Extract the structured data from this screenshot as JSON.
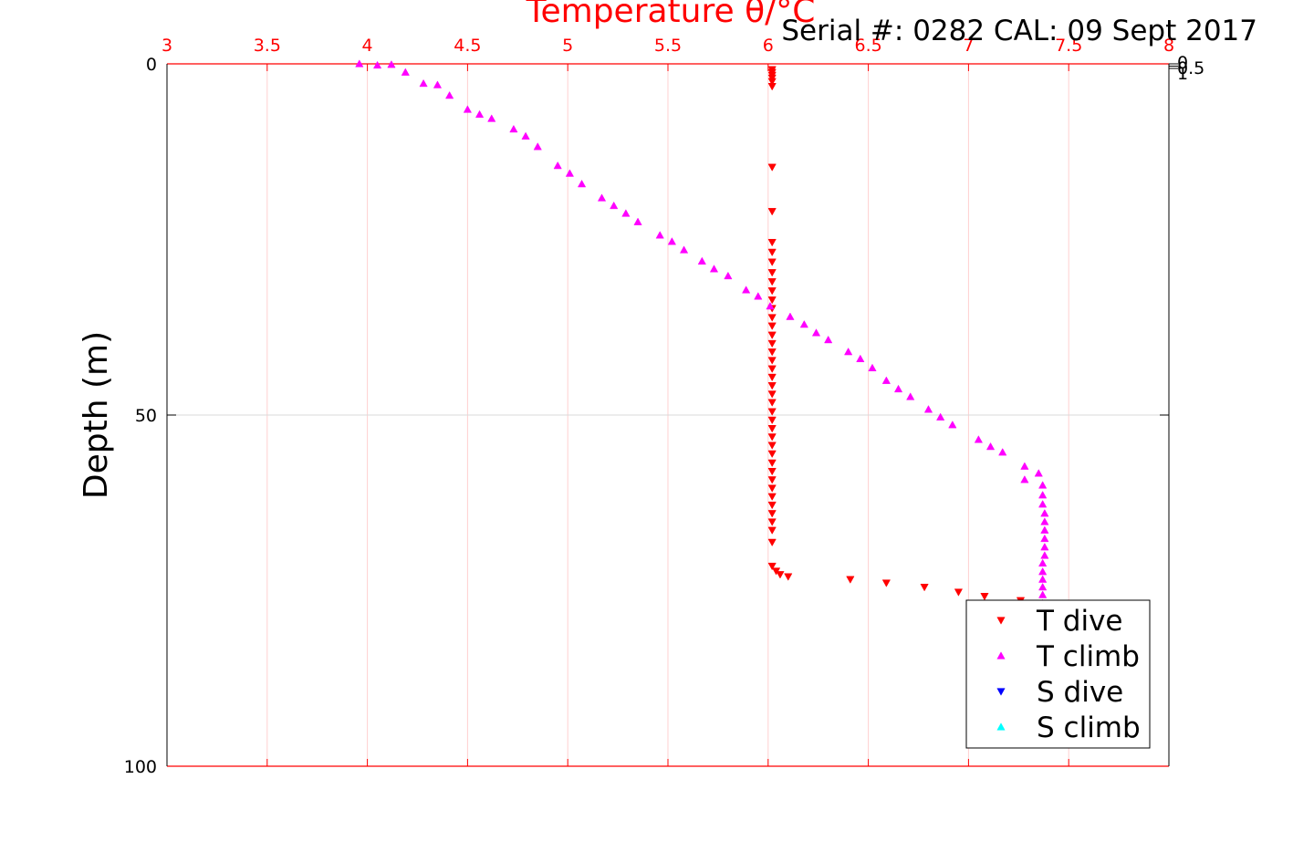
{
  "header": {
    "serial_text": "Serial #: 0282  CAL: 09 Sept 2017"
  },
  "colors": {
    "t_dive": "#ff0000",
    "t_climb": "#ff00ff",
    "s_dive": "#0000ff",
    "s_climb": "#00ffff",
    "top_axis": "#ff0000",
    "grid_vertical": "#ffd0d0",
    "grid_horizontal": "#d9d9d9"
  },
  "chart_data": {
    "type": "scatter",
    "title": "Temperature θ/°C",
    "xlabel": "Temperature θ/°C",
    "ylabel": "Depth (m)",
    "xlim": [
      3,
      8
    ],
    "ylim": [
      0,
      100
    ],
    "y_reversed": true,
    "grid": true,
    "legend_position": "bottom-right",
    "x_ticks": [
      "3",
      "3.5",
      "4",
      "4.5",
      "5",
      "5.5",
      "6",
      "6.5",
      "7",
      "7.5",
      "8"
    ],
    "y_ticks": [
      "0",
      "50",
      "100"
    ],
    "right_ticks": [
      "0",
      "0.5",
      "1"
    ],
    "series": [
      {
        "name": "T dive",
        "marker": "triangle-down",
        "points": [
          [
            6.02,
            0.8
          ],
          [
            6.02,
            1.2
          ],
          [
            6.02,
            1.6
          ],
          [
            6.02,
            2.0
          ],
          [
            6.02,
            2.5
          ],
          [
            6.02,
            3.2
          ],
          [
            6.02,
            14.7
          ],
          [
            6.02,
            21.0
          ],
          [
            6.02,
            25.4
          ],
          [
            6.02,
            26.8
          ],
          [
            6.02,
            28.2
          ],
          [
            6.02,
            29.7
          ],
          [
            6.02,
            31.0
          ],
          [
            6.02,
            32.3
          ],
          [
            6.02,
            33.6
          ],
          [
            6.02,
            34.8
          ],
          [
            6.02,
            36.1
          ],
          [
            6.02,
            37.3
          ],
          [
            6.02,
            38.6
          ],
          [
            6.02,
            39.8
          ],
          [
            6.02,
            41.0
          ],
          [
            6.02,
            42.2
          ],
          [
            6.02,
            43.4
          ],
          [
            6.02,
            44.6
          ],
          [
            6.02,
            45.8
          ],
          [
            6.02,
            47.0
          ],
          [
            6.02,
            48.2
          ],
          [
            6.02,
            49.5
          ],
          [
            6.02,
            50.7
          ],
          [
            6.02,
            51.9
          ],
          [
            6.02,
            53.1
          ],
          [
            6.02,
            54.3
          ],
          [
            6.02,
            55.5
          ],
          [
            6.02,
            56.8
          ],
          [
            6.02,
            58.0
          ],
          [
            6.02,
            59.2
          ],
          [
            6.02,
            60.4
          ],
          [
            6.02,
            61.6
          ],
          [
            6.02,
            62.8
          ],
          [
            6.02,
            64.0
          ],
          [
            6.02,
            65.2
          ],
          [
            6.02,
            66.4
          ],
          [
            6.02,
            68.1
          ],
          [
            6.02,
            71.5
          ],
          [
            6.04,
            72.2
          ],
          [
            6.06,
            72.7
          ],
          [
            6.1,
            73.0
          ],
          [
            6.41,
            73.4
          ],
          [
            6.59,
            73.9
          ],
          [
            6.78,
            74.5
          ],
          [
            6.95,
            75.2
          ],
          [
            7.08,
            75.8
          ],
          [
            7.26,
            76.4
          ],
          [
            7.33,
            76.8
          ]
        ]
      },
      {
        "name": "T climb",
        "marker": "triangle-up",
        "points": [
          [
            3.96,
            0.0
          ],
          [
            4.05,
            0.2
          ],
          [
            4.12,
            0.1
          ],
          [
            4.19,
            1.2
          ],
          [
            4.28,
            2.8
          ],
          [
            4.35,
            3.0
          ],
          [
            4.41,
            4.5
          ],
          [
            4.5,
            6.5
          ],
          [
            4.56,
            7.2
          ],
          [
            4.62,
            7.8
          ],
          [
            4.73,
            9.3
          ],
          [
            4.79,
            10.3
          ],
          [
            4.85,
            11.8
          ],
          [
            4.95,
            14.5
          ],
          [
            5.01,
            15.6
          ],
          [
            5.07,
            17.1
          ],
          [
            5.17,
            19.1
          ],
          [
            5.23,
            20.2
          ],
          [
            5.29,
            21.3
          ],
          [
            5.35,
            22.5
          ],
          [
            5.46,
            24.4
          ],
          [
            5.52,
            25.3
          ],
          [
            5.58,
            26.5
          ],
          [
            5.67,
            28.1
          ],
          [
            5.73,
            29.2
          ],
          [
            5.8,
            30.2
          ],
          [
            5.89,
            32.2
          ],
          [
            5.95,
            33.1
          ],
          [
            6.01,
            34.5
          ],
          [
            6.11,
            36.0
          ],
          [
            6.18,
            37.1
          ],
          [
            6.24,
            38.3
          ],
          [
            6.3,
            39.3
          ],
          [
            6.4,
            41.0
          ],
          [
            6.46,
            42.0
          ],
          [
            6.52,
            43.3
          ],
          [
            6.59,
            45.1
          ],
          [
            6.65,
            46.3
          ],
          [
            6.71,
            47.4
          ],
          [
            6.8,
            49.2
          ],
          [
            6.86,
            50.3
          ],
          [
            6.92,
            51.4
          ],
          [
            7.05,
            53.5
          ],
          [
            7.11,
            54.5
          ],
          [
            7.17,
            55.3
          ],
          [
            7.28,
            57.3
          ],
          [
            7.35,
            58.3
          ],
          [
            7.28,
            59.2
          ],
          [
            7.37,
            60.0
          ],
          [
            7.37,
            61.4
          ],
          [
            7.37,
            62.7
          ],
          [
            7.38,
            64.0
          ],
          [
            7.38,
            65.2
          ],
          [
            7.38,
            66.4
          ],
          [
            7.38,
            67.6
          ],
          [
            7.38,
            68.8
          ],
          [
            7.38,
            70.0
          ],
          [
            7.37,
            71.1
          ],
          [
            7.37,
            72.3
          ],
          [
            7.37,
            73.4
          ],
          [
            7.37,
            74.5
          ],
          [
            7.37,
            75.6
          ],
          [
            7.37,
            76.8
          ],
          [
            7.37,
            77.5
          ]
        ]
      },
      {
        "name": "S dive",
        "marker": "triangle-down",
        "points": []
      },
      {
        "name": "S climb",
        "marker": "triangle-up",
        "points": []
      }
    ]
  }
}
